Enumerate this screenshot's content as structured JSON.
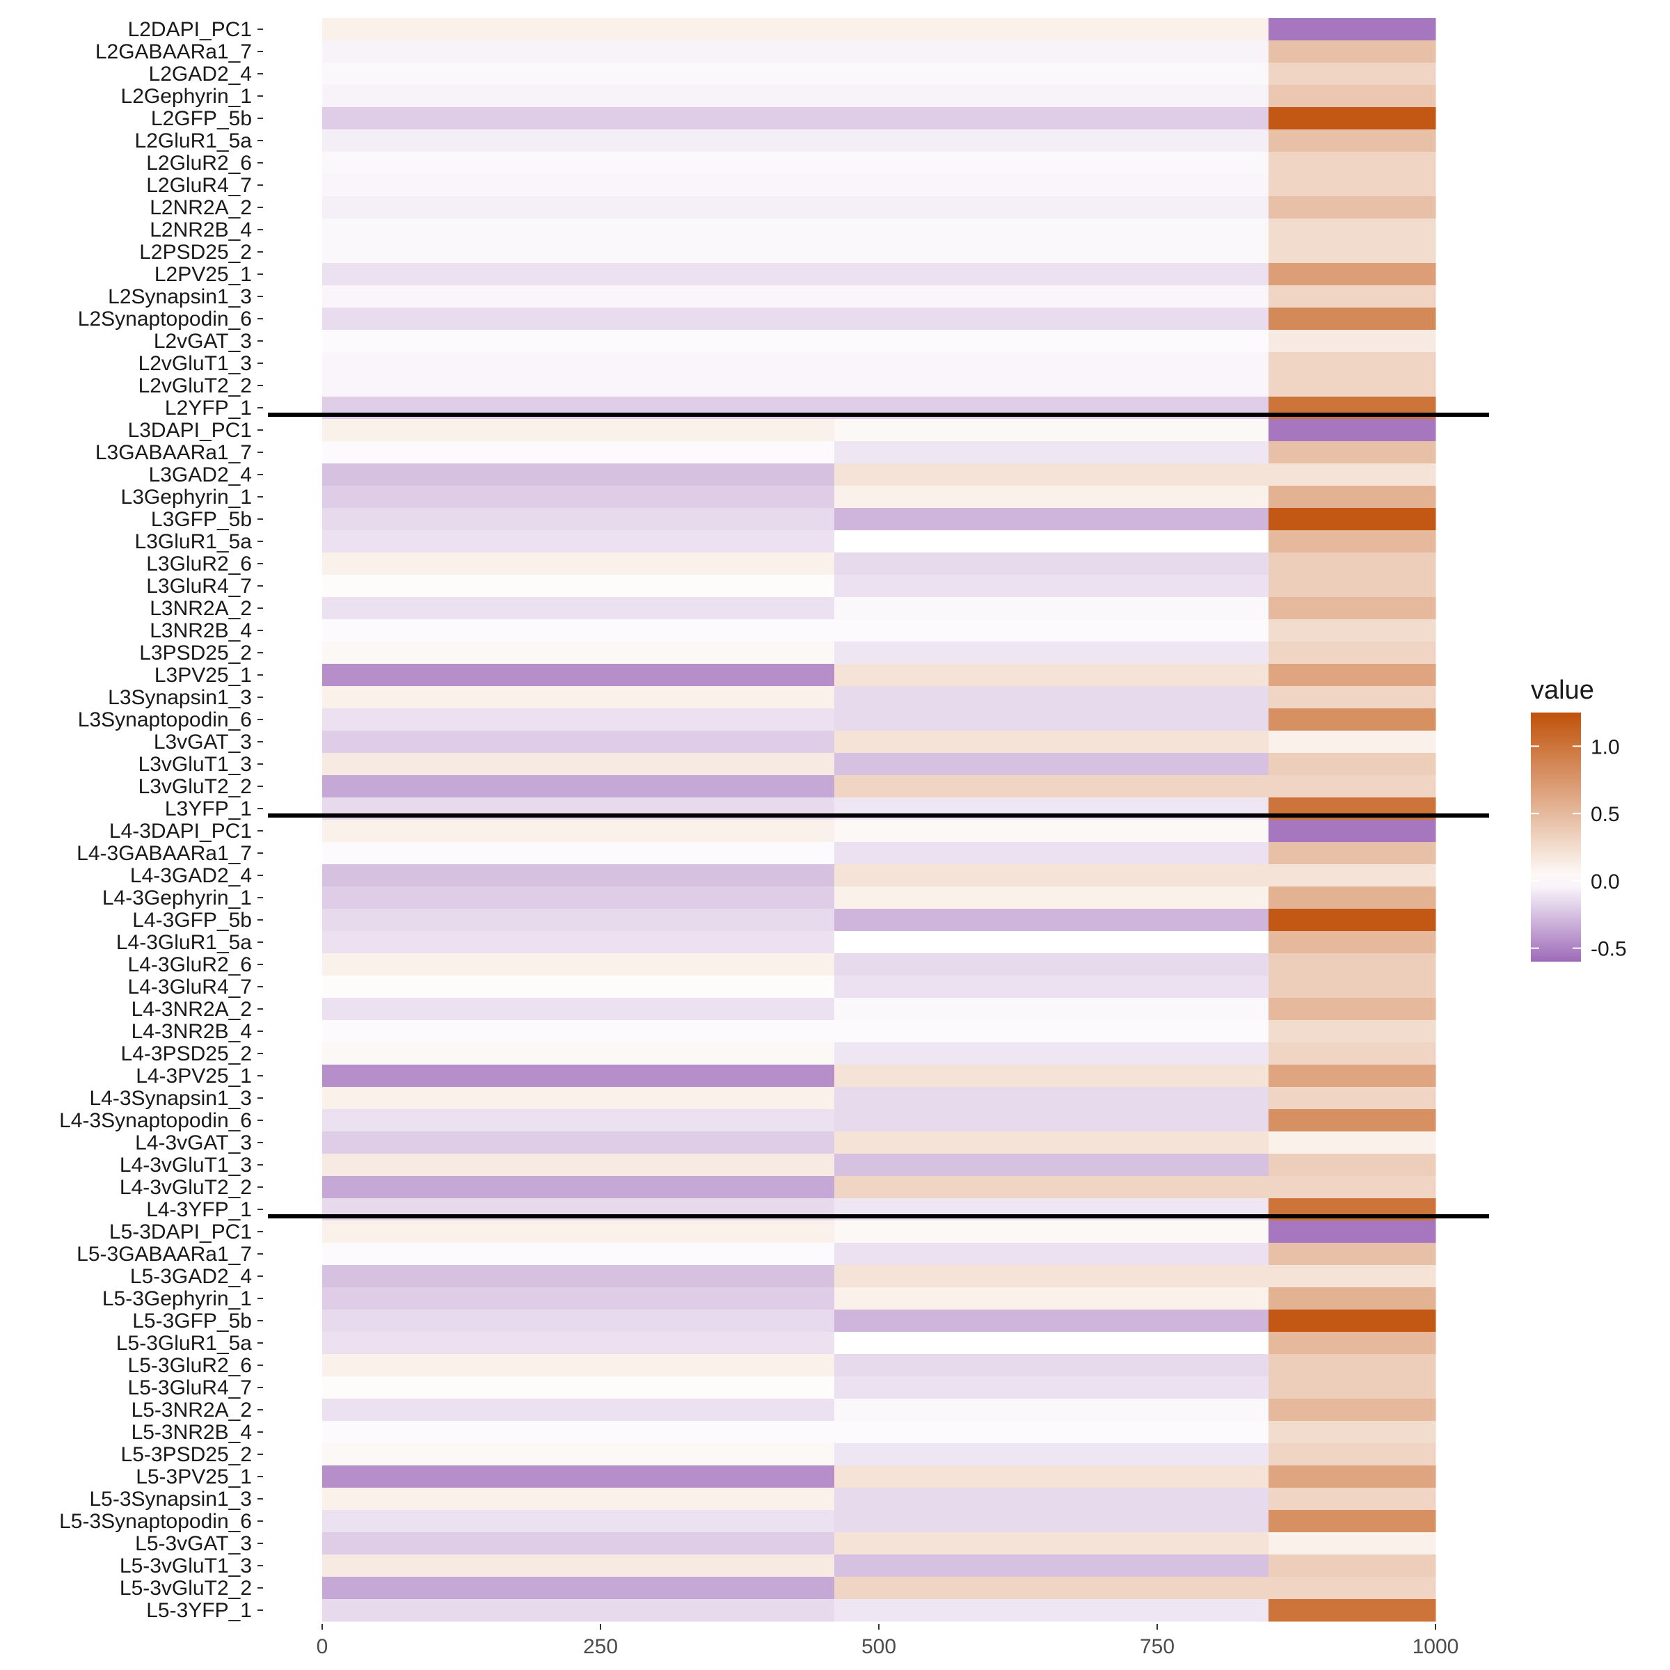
{
  "chart_data": {
    "type": "heatmap",
    "x_ticks": [
      0,
      250,
      500,
      750,
      1000
    ],
    "x_range": [
      0,
      1000
    ],
    "x_bins": [
      {
        "start": 0,
        "end": 460
      },
      {
        "start": 460,
        "end": 850
      },
      {
        "start": 850,
        "end": 1000
      }
    ],
    "rows": [
      "L2DAPI_PC1",
      "L2GABAARa1_7",
      "L2GAD2_4",
      "L2Gephyrin_1",
      "L2GFP_5b",
      "L2GluR1_5a",
      "L2GluR2_6",
      "L2GluR4_7",
      "L2NR2A_2",
      "L2NR2B_4",
      "L2PSD25_2",
      "L2PV25_1",
      "L2Synapsin1_3",
      "L2Synaptopodin_6",
      "L2vGAT_3",
      "L2vGluT1_3",
      "L2vGluT2_2",
      "L2YFP_1",
      "L3DAPI_PC1",
      "L3GABAARa1_7",
      "L3GAD2_4",
      "L3Gephyrin_1",
      "L3GFP_5b",
      "L3GluR1_5a",
      "L3GluR2_6",
      "L3GluR4_7",
      "L3NR2A_2",
      "L3NR2B_4",
      "L3PSD25_2",
      "L3PV25_1",
      "L3Synapsin1_3",
      "L3Synaptopodin_6",
      "L3vGAT_3",
      "L3vGluT1_3",
      "L3vGluT2_2",
      "L3YFP_1",
      "L4-3DAPI_PC1",
      "L4-3GABAARa1_7",
      "L4-3GAD2_4",
      "L4-3Gephyrin_1",
      "L4-3GFP_5b",
      "L4-3GluR1_5a",
      "L4-3GluR2_6",
      "L4-3GluR4_7",
      "L4-3NR2A_2",
      "L4-3NR2B_4",
      "L4-3PSD25_2",
      "L4-3PV25_1",
      "L4-3Synapsin1_3",
      "L4-3Synaptopodin_6",
      "L4-3vGAT_3",
      "L4-3vGluT1_3",
      "L4-3vGluT2_2",
      "L4-3YFP_1",
      "L5-3DAPI_PC1",
      "L5-3GABAARa1_7",
      "L5-3GAD2_4",
      "L5-3Gephyrin_1",
      "L5-3GFP_5b",
      "L5-3GluR1_5a",
      "L5-3GluR2_6",
      "L5-3GluR4_7",
      "L5-3NR2A_2",
      "L5-3NR2B_4",
      "L5-3PSD25_2",
      "L5-3PV25_1",
      "L5-3Synapsin1_3",
      "L5-3Synaptopodin_6",
      "L5-3vGAT_3",
      "L5-3vGluT1_3",
      "L5-3vGluT2_2",
      "L5-3YFP_1"
    ],
    "values": [
      [
        0.1,
        0.1,
        -0.55
      ],
      [
        -0.05,
        -0.05,
        0.45
      ],
      [
        -0.03,
        -0.03,
        0.3
      ],
      [
        -0.05,
        -0.05,
        0.4
      ],
      [
        -0.2,
        -0.2,
        1.2
      ],
      [
        -0.07,
        -0.07,
        0.45
      ],
      [
        -0.03,
        -0.03,
        0.3
      ],
      [
        -0.04,
        -0.04,
        0.3
      ],
      [
        -0.06,
        -0.06,
        0.45
      ],
      [
        -0.03,
        -0.03,
        0.25
      ],
      [
        -0.03,
        -0.03,
        0.25
      ],
      [
        -0.12,
        -0.12,
        0.7
      ],
      [
        -0.04,
        -0.04,
        0.3
      ],
      [
        -0.14,
        -0.14,
        0.85
      ],
      [
        -0.02,
        -0.02,
        0.15
      ],
      [
        -0.04,
        -0.04,
        0.3
      ],
      [
        -0.04,
        -0.04,
        0.3
      ],
      [
        -0.2,
        -0.2,
        1.0
      ],
      [
        0.1,
        0.05,
        -0.55
      ],
      [
        -0.02,
        -0.1,
        0.45
      ],
      [
        -0.25,
        0.2,
        0.2
      ],
      [
        -0.2,
        0.1,
        0.55
      ],
      [
        -0.15,
        -0.3,
        1.2
      ],
      [
        -0.12,
        0.0,
        0.5
      ],
      [
        0.1,
        -0.15,
        0.35
      ],
      [
        0.02,
        -0.12,
        0.35
      ],
      [
        -0.12,
        -0.03,
        0.5
      ],
      [
        -0.02,
        -0.02,
        0.25
      ],
      [
        0.05,
        -0.1,
        0.3
      ],
      [
        -0.45,
        0.2,
        0.65
      ],
      [
        0.1,
        -0.15,
        0.3
      ],
      [
        -0.12,
        -0.15,
        0.8
      ],
      [
        -0.2,
        0.2,
        0.1
      ],
      [
        0.15,
        -0.25,
        0.35
      ],
      [
        -0.35,
        0.3,
        0.3
      ],
      [
        -0.15,
        -0.1,
        1.0
      ],
      [
        0.1,
        0.05,
        -0.55
      ],
      [
        -0.02,
        -0.12,
        0.45
      ],
      [
        -0.25,
        0.2,
        0.2
      ],
      [
        -0.2,
        0.1,
        0.55
      ],
      [
        -0.15,
        -0.3,
        1.2
      ],
      [
        -0.12,
        0.0,
        0.5
      ],
      [
        0.1,
        -0.15,
        0.35
      ],
      [
        0.02,
        -0.12,
        0.35
      ],
      [
        -0.12,
        -0.03,
        0.5
      ],
      [
        -0.02,
        -0.02,
        0.25
      ],
      [
        0.05,
        -0.1,
        0.3
      ],
      [
        -0.45,
        0.2,
        0.65
      ],
      [
        0.1,
        -0.15,
        0.3
      ],
      [
        -0.12,
        -0.15,
        0.8
      ],
      [
        -0.2,
        0.2,
        0.1
      ],
      [
        0.15,
        -0.25,
        0.35
      ],
      [
        -0.35,
        0.3,
        0.3
      ],
      [
        -0.15,
        -0.1,
        1.0
      ],
      [
        0.1,
        0.05,
        -0.55
      ],
      [
        -0.02,
        -0.12,
        0.45
      ],
      [
        -0.25,
        0.2,
        0.2
      ],
      [
        -0.2,
        0.1,
        0.55
      ],
      [
        -0.15,
        -0.3,
        1.2
      ],
      [
        -0.12,
        0.0,
        0.5
      ],
      [
        0.1,
        -0.15,
        0.35
      ],
      [
        0.02,
        -0.12,
        0.35
      ],
      [
        -0.12,
        -0.03,
        0.5
      ],
      [
        -0.02,
        -0.02,
        0.25
      ],
      [
        0.05,
        -0.1,
        0.3
      ],
      [
        -0.45,
        0.2,
        0.65
      ],
      [
        0.1,
        -0.15,
        0.3
      ],
      [
        -0.12,
        -0.15,
        0.8
      ],
      [
        -0.2,
        0.2,
        0.1
      ],
      [
        0.15,
        -0.25,
        0.35
      ],
      [
        -0.35,
        0.3,
        0.3
      ],
      [
        -0.15,
        -0.1,
        1.0
      ]
    ],
    "group_separators_after": [
      "L2YFP_1",
      "L3YFP_1",
      "L4-3YFP_1"
    ],
    "legend": {
      "title": "value",
      "ticks": [
        1.0,
        0.5,
        0.0,
        -0.5
      ],
      "tick_labels": [
        "1.0",
        "0.5",
        "0.0",
        "-0.5"
      ],
      "range": [
        -0.6,
        1.25
      ],
      "placement": "right",
      "colors": {
        "low": "#9E6AB8",
        "mid": "#FFFFFF",
        "high": "#C0510A"
      }
    },
    "grid": false
  }
}
